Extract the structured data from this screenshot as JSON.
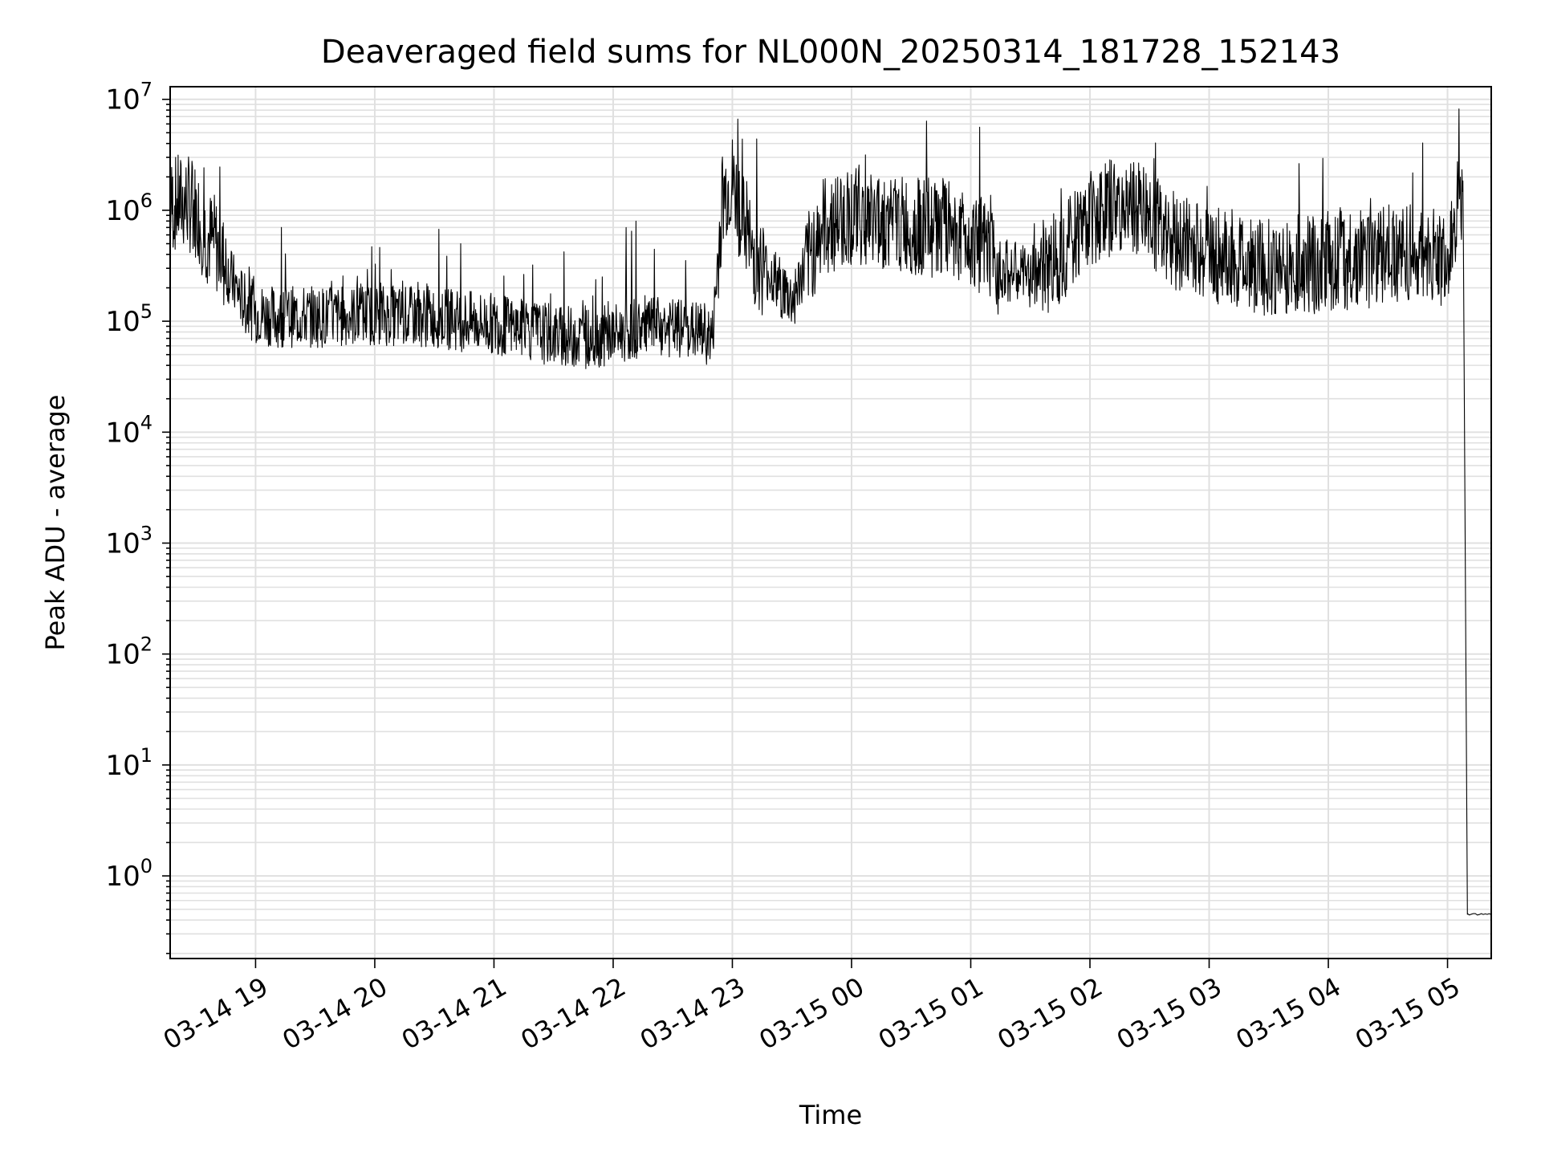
{
  "chart_data": {
    "type": "line",
    "title": "Deaveraged field sums for NL000N_20250314_181728_152143",
    "xlabel": "Time",
    "ylabel": "Peak ADU - average",
    "yscale": "log",
    "ylim": [
      0.18,
      13000000
    ],
    "xlim": [
      "03-14 18:17",
      "03-15 05:22"
    ],
    "grid": true,
    "line_color": "#000000",
    "grid_color": "#e0e0e0",
    "x_ticks": [
      "03-14 19",
      "03-14 20",
      "03-14 21",
      "03-14 22",
      "03-14 23",
      "03-15 00",
      "03-15 01",
      "03-15 02",
      "03-15 03",
      "03-15 04",
      "03-15 05"
    ],
    "y_ticks": [
      {
        "value": 1,
        "base": "10",
        "exp": "0"
      },
      {
        "value": 10,
        "base": "10",
        "exp": "1"
      },
      {
        "value": 100,
        "base": "10",
        "exp": "2"
      },
      {
        "value": 1000,
        "base": "10",
        "exp": "3"
      },
      {
        "value": 10000,
        "base": "10",
        "exp": "4"
      },
      {
        "value": 100000,
        "base": "10",
        "exp": "5"
      },
      {
        "value": 1000000,
        "base": "10",
        "exp": "6"
      },
      {
        "value": 10000000,
        "base": "10",
        "exp": "7"
      }
    ],
    "series": [
      {
        "x": [
          "03-14 18:17",
          "03-14 18:25",
          "03-14 18:30",
          "03-14 18:35",
          "03-14 18:40",
          "03-14 18:45",
          "03-14 18:50",
          "03-14 18:55",
          "03-14 19:00",
          "03-14 19:10",
          "03-14 19:20",
          "03-14 19:30",
          "03-14 19:45",
          "03-14 20:00",
          "03-14 20:15",
          "03-14 20:30",
          "03-14 20:45",
          "03-14 21:00",
          "03-14 21:15",
          "03-14 21:30",
          "03-14 21:45",
          "03-14 22:00",
          "03-14 22:15",
          "03-14 22:30",
          "03-14 22:45",
          "03-14 22:50",
          "03-14 22:55",
          "03-14 23:00",
          "03-14 23:10",
          "03-14 23:20",
          "03-14 23:30",
          "03-14 23:45",
          "03-15 00:00",
          "03-15 00:15",
          "03-15 00:30",
          "03-15 00:45",
          "03-15 01:00",
          "03-15 01:15",
          "03-15 01:30",
          "03-15 01:45",
          "03-15 02:00",
          "03-15 02:15",
          "03-15 02:30",
          "03-15 02:45",
          "03-15 03:00",
          "03-15 03:15",
          "03-15 03:30",
          "03-15 03:45",
          "03-15 04:00",
          "03-15 04:15",
          "03-15 04:30",
          "03-15 04:45",
          "03-15 05:00",
          "03-15 05:05",
          "03-15 05:08",
          "03-15 05:10",
          "03-15 05:22"
        ],
        "values": [
          1100000,
          1200000,
          1000000,
          600000,
          500000,
          300000,
          200000,
          140000,
          120000,
          110000,
          110000,
          110000,
          110000,
          115000,
          110000,
          110000,
          100000,
          95000,
          85000,
          75000,
          70000,
          75000,
          90000,
          85000,
          80000,
          70000,
          1300000,
          1700000,
          400000,
          250000,
          150000,
          700000,
          900000,
          800000,
          700000,
          700000,
          600000,
          300000,
          250000,
          400000,
          900000,
          1100000,
          900000,
          500000,
          400000,
          350000,
          300000,
          300000,
          350000,
          350000,
          400000,
          400000,
          350000,
          1000000,
          800000,
          0.45,
          0.45
        ]
      }
    ]
  }
}
